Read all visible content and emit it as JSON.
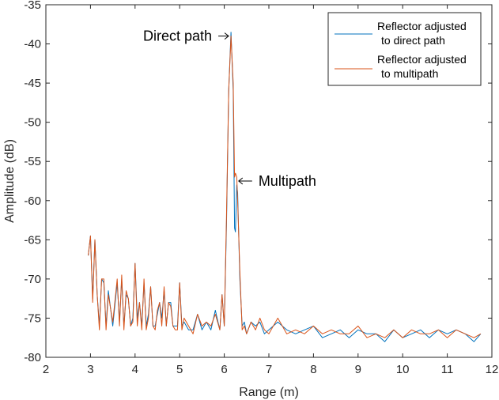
{
  "chart_data": {
    "type": "line",
    "xlabel": "Range (m)",
    "ylabel": "Amplitude (dB)",
    "xlim": [
      2,
      12
    ],
    "ylim": [
      -80,
      -35
    ],
    "xticks": [
      2,
      3,
      4,
      5,
      6,
      7,
      8,
      9,
      10,
      11,
      12
    ],
    "yticks": [
      -80,
      -75,
      -70,
      -65,
      -60,
      -55,
      -50,
      -45,
      -40,
      -35
    ],
    "grid": false,
    "legend_position": "top-right",
    "annotations": [
      {
        "text": "Direct path",
        "x": 6.15,
        "y": -39.0,
        "side": "left"
      },
      {
        "text": "Multipath",
        "x": 6.27,
        "y": -57.5,
        "side": "right"
      }
    ],
    "series": [
      {
        "name": "Reflector adjusted to direct path",
        "legend_lines": [
          "Reflector adjusted",
          "to direct path"
        ],
        "color": "#0072BD",
        "x": [
          2.95,
          3.0,
          3.05,
          3.1,
          3.15,
          3.2,
          3.25,
          3.3,
          3.35,
          3.4,
          3.5,
          3.6,
          3.65,
          3.7,
          3.75,
          3.8,
          3.85,
          3.9,
          3.95,
          4.0,
          4.05,
          4.1,
          4.15,
          4.2,
          4.25,
          4.3,
          4.35,
          4.4,
          4.45,
          4.5,
          4.55,
          4.6,
          4.65,
          4.7,
          4.75,
          4.8,
          4.85,
          4.9,
          4.95,
          5.0,
          5.05,
          5.1,
          5.2,
          5.3,
          5.4,
          5.5,
          5.6,
          5.7,
          5.8,
          5.9,
          5.95,
          6.0,
          6.05,
          6.1,
          6.15,
          6.2,
          6.23,
          6.25,
          6.28,
          6.3,
          6.35,
          6.4,
          6.45,
          6.5,
          6.6,
          6.7,
          6.8,
          6.9,
          7.0,
          7.2,
          7.4,
          7.6,
          7.8,
          8.0,
          8.2,
          8.4,
          8.6,
          8.8,
          9.0,
          9.2,
          9.4,
          9.6,
          9.8,
          10.0,
          10.2,
          10.4,
          10.6,
          10.8,
          11.0,
          11.2,
          11.4,
          11.6,
          11.75
        ],
        "y": [
          -67,
          -64.5,
          -72.5,
          -65,
          -72,
          -76,
          -70,
          -70.5,
          -76,
          -71.5,
          -76,
          -70.5,
          -75.5,
          -70,
          -76,
          -72,
          -72.5,
          -76,
          -75,
          -68,
          -75,
          -73,
          -76,
          -70.5,
          -76,
          -74.5,
          -71,
          -76,
          -76,
          -74.5,
          -73,
          -75,
          -71.5,
          -76,
          -73,
          -73,
          -76,
          -76,
          -76,
          -70.5,
          -76,
          -75.5,
          -76.5,
          -76.5,
          -74.5,
          -76.5,
          -75.5,
          -76.5,
          -74,
          -76.5,
          -72,
          -76,
          -63,
          -46,
          -38.5,
          -46,
          -63.5,
          -64,
          -58,
          -59,
          -70,
          -76,
          -75.5,
          -77,
          -75.5,
          -76,
          -75.5,
          -77,
          -76.5,
          -75.5,
          -76.5,
          -77,
          -76.5,
          -76,
          -77.5,
          -77,
          -76.5,
          -77.5,
          -76.5,
          -77,
          -77,
          -78,
          -76.5,
          -77.5,
          -77,
          -76.5,
          -77.5,
          -76.5,
          -77,
          -76.5,
          -77,
          -78,
          -77
        ]
      },
      {
        "name": "Reflector adjusted to multipath",
        "legend_lines": [
          "Reflector adjusted",
          "to multipath"
        ],
        "color": "#D95319",
        "x": [
          2.95,
          3.0,
          3.05,
          3.1,
          3.15,
          3.2,
          3.25,
          3.3,
          3.35,
          3.4,
          3.5,
          3.6,
          3.65,
          3.7,
          3.75,
          3.8,
          3.85,
          3.9,
          3.95,
          4.0,
          4.05,
          4.1,
          4.15,
          4.2,
          4.25,
          4.3,
          4.35,
          4.4,
          4.45,
          4.5,
          4.55,
          4.6,
          4.65,
          4.7,
          4.75,
          4.8,
          4.85,
          4.9,
          4.95,
          5.0,
          5.05,
          5.1,
          5.2,
          5.3,
          5.4,
          5.5,
          5.6,
          5.7,
          5.8,
          5.9,
          5.95,
          6.0,
          6.05,
          6.1,
          6.15,
          6.2,
          6.23,
          6.25,
          6.28,
          6.3,
          6.35,
          6.4,
          6.45,
          6.5,
          6.6,
          6.7,
          6.8,
          6.9,
          7.0,
          7.2,
          7.4,
          7.6,
          7.8,
          8.0,
          8.2,
          8.4,
          8.6,
          8.8,
          9.0,
          9.2,
          9.4,
          9.6,
          9.8,
          10.0,
          10.2,
          10.4,
          10.6,
          10.8,
          11.0,
          11.2,
          11.4,
          11.6,
          11.75
        ],
        "y": [
          -67,
          -64.5,
          -73,
          -65,
          -72,
          -76.5,
          -70,
          -70,
          -76.5,
          -72,
          -75.5,
          -70,
          -76,
          -69.5,
          -76.5,
          -71.5,
          -72.5,
          -76,
          -75.5,
          -68,
          -76,
          -73,
          -76.5,
          -70,
          -76.5,
          -75,
          -71,
          -76,
          -76.5,
          -74,
          -73,
          -76,
          -71,
          -76,
          -73,
          -73.5,
          -76,
          -76.5,
          -76.5,
          -70.5,
          -76.5,
          -75,
          -76,
          -77,
          -74.5,
          -76,
          -75.5,
          -76,
          -74.5,
          -76.5,
          -72,
          -76,
          -62,
          -46,
          -39,
          -45,
          -57,
          -56.5,
          -57,
          -60,
          -69,
          -76.5,
          -76,
          -77,
          -75.5,
          -76.5,
          -75,
          -76.5,
          -77,
          -75,
          -77,
          -76.5,
          -77,
          -76,
          -77,
          -76.5,
          -77,
          -77,
          -76,
          -77.5,
          -77,
          -77.5,
          -76.5,
          -77.5,
          -76.5,
          -77,
          -77,
          -76.5,
          -77.5,
          -76.5,
          -77,
          -77.5,
          -77
        ]
      }
    ]
  }
}
